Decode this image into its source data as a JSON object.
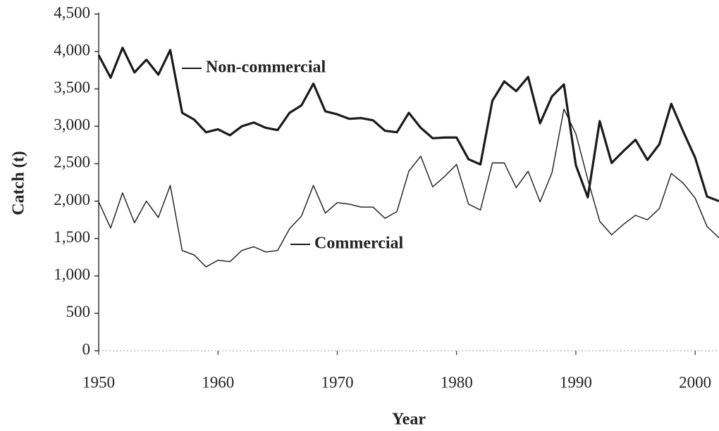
{
  "chart_data": {
    "type": "line",
    "x_label": "Year",
    "y_label": "Catch (t)",
    "x": [
      1950,
      1951,
      1952,
      1953,
      1954,
      1955,
      1956,
      1957,
      1958,
      1959,
      1960,
      1961,
      1962,
      1963,
      1964,
      1965,
      1966,
      1967,
      1968,
      1969,
      1970,
      1971,
      1972,
      1973,
      1974,
      1975,
      1976,
      1977,
      1978,
      1979,
      1980,
      1981,
      1982,
      1983,
      1984,
      1985,
      1986,
      1987,
      1988,
      1989,
      1990,
      1991,
      1992,
      1993,
      1994,
      1995,
      1996,
      1997,
      1998,
      1999,
      2000,
      2001,
      2002
    ],
    "series": [
      {
        "name": "Non-commercial",
        "color": "#1a1a1a",
        "values": [
          3950,
          3650,
          4050,
          3720,
          3890,
          3690,
          4020,
          3180,
          3090,
          2920,
          2960,
          2880,
          3000,
          3050,
          2980,
          2950,
          3180,
          3280,
          3570,
          3200,
          3160,
          3100,
          3110,
          3080,
          2940,
          2920,
          3180,
          2980,
          2840,
          2850,
          2850,
          2560,
          2490,
          3340,
          3600,
          3470,
          3660,
          3040,
          3400,
          3560,
          2480,
          2050,
          3070,
          2510,
          2670,
          2820,
          2550,
          2760,
          3300,
          2930,
          2580,
          2060,
          2000
        ]
      },
      {
        "name": "Commercial",
        "color": "#1a1a1a",
        "values": [
          1990,
          1640,
          2110,
          1710,
          2000,
          1780,
          2210,
          1340,
          1280,
          1120,
          1210,
          1190,
          1340,
          1390,
          1320,
          1340,
          1630,
          1800,
          2210,
          1840,
          1980,
          1960,
          1920,
          1920,
          1770,
          1860,
          2400,
          2600,
          2190,
          2330,
          2490,
          1960,
          1880,
          2510,
          2510,
          2180,
          2400,
          1990,
          2380,
          3230,
          2900,
          2290,
          1730,
          1550,
          1690,
          1810,
          1750,
          1900,
          2370,
          2240,
          2040,
          1660,
          1510
        ]
      }
    ],
    "xlim": [
      1950,
      2002
    ],
    "xticks": [
      1950,
      1960,
      1970,
      1980,
      1990,
      2000
    ],
    "ylim": [
      0,
      4500
    ],
    "yticks": [
      0,
      500,
      {
        "value": 1000,
        "label": "1,000"
      },
      {
        "value": 1500,
        "label": "1,500"
      },
      {
        "value": 2000,
        "label": "2,000"
      },
      {
        "value": 2500,
        "label": "2,500"
      },
      {
        "value": 3000,
        "label": "3,000"
      },
      {
        "value": 3500,
        "label": "3,500"
      },
      {
        "value": 4000,
        "label": "4,000"
      },
      {
        "value": 4500,
        "label": "4,500"
      }
    ],
    "grid": false
  }
}
